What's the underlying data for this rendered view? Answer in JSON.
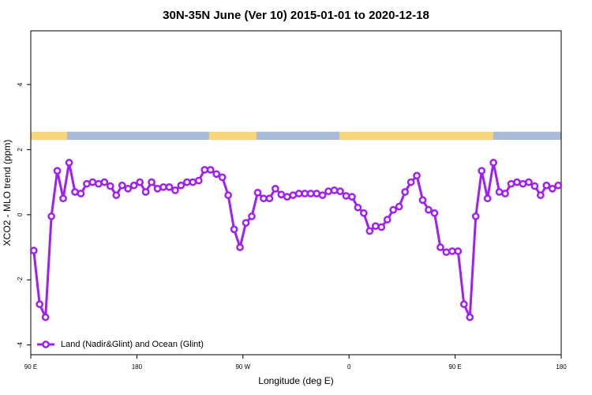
{
  "chart_data": {
    "type": "line",
    "title": "30N-35N June (Ver 10)   2015-01-01 to 2020-12-18",
    "x_label": "Longitude (deg E)",
    "y_label": "XCO2 - MLO trend (ppm)",
    "xlim": [
      90,
      540
    ],
    "ylim": [
      -4.3,
      5.65
    ],
    "xticks": [
      {
        "value": 90,
        "label": "90 E"
      },
      180,
      {
        "value": 270,
        "label": "90 W"
      },
      {
        "value": 360,
        "label": "0"
      },
      {
        "value": 450,
        "label": "90 E"
      },
      {
        "value": 540,
        "label": "180"
      }
    ],
    "yticks": [
      -4,
      -2,
      0,
      2,
      4
    ],
    "legend": "bottom-left",
    "band_ylim": [
      2.3,
      2.55
    ],
    "band": [
      {
        "start": 90,
        "end": 120.8,
        "color": "#f7d57a"
      },
      {
        "start": 120.8,
        "end": 241.3,
        "color": "#a8bbd9"
      },
      {
        "start": 241.3,
        "end": 281.5,
        "color": "#f7d57a"
      },
      {
        "start": 281.5,
        "end": 351.8,
        "color": "#a8bbd9"
      },
      {
        "start": 351.8,
        "end": 482.4,
        "color": "#f7d57a"
      },
      {
        "start": 482.4,
        "end": 540,
        "color": "#a8bbd9"
      }
    ],
    "x": [
      92.5,
      97.5,
      102.5,
      107.5,
      112.5,
      117.5,
      122.5,
      127.5,
      132.5,
      137.5,
      142.5,
      147.5,
      152.5,
      157.5,
      162.5,
      167.5,
      172.5,
      177.5,
      182.5,
      187.5,
      192.5,
      197.5,
      202.5,
      207.5,
      212.5,
      217.5,
      222.5,
      227.5,
      232.5,
      237.5,
      242.5,
      247.5,
      252.5,
      257.5,
      262.5,
      267.5,
      272.5,
      277.5,
      282.5,
      287.5,
      292.5,
      297.5,
      302.5,
      307.5,
      312.5,
      317.5,
      322.5,
      327.5,
      332.5,
      337.5,
      342.5,
      347.5,
      352.5,
      357.5,
      362.5,
      367.5,
      372.5,
      377.5,
      382.5,
      387.5,
      392.5,
      397.5,
      402.5,
      407.5,
      412.5,
      417.5,
      422.5,
      427.5,
      432.5,
      437.5,
      442.5,
      447.5,
      452.5,
      457.5,
      462.5,
      467.5,
      472.5,
      477.5,
      482.5,
      487.5,
      492.5,
      497.5,
      502.5,
      507.5,
      512.5,
      517.5,
      522.5,
      527.5,
      532.5,
      537.5
    ],
    "series": [
      {
        "name": "Land (Nadir&Glint) and Ocean (Glint)",
        "color": "#a020f0",
        "values": [
          -1.1,
          -2.75,
          -3.15,
          -0.05,
          1.35,
          0.5,
          1.6,
          0.7,
          0.65,
          0.95,
          1.0,
          0.95,
          1.0,
          0.88,
          0.6,
          0.9,
          0.8,
          0.9,
          1.0,
          0.7,
          1.0,
          0.8,
          0.85,
          0.85,
          0.75,
          0.9,
          1.0,
          1.0,
          1.05,
          1.38,
          1.38,
          1.25,
          1.15,
          0.6,
          -0.45,
          -1.0,
          -0.25,
          -0.05,
          0.68,
          0.5,
          0.5,
          0.8,
          0.62,
          0.55,
          0.6,
          0.65,
          0.65,
          0.65,
          0.65,
          0.6,
          0.72,
          0.75,
          0.72,
          0.58,
          0.55,
          0.22,
          0.05,
          -0.5,
          -0.35,
          -0.38,
          -0.15,
          0.15,
          0.25,
          0.7,
          1.0,
          1.2,
          0.45,
          0.15,
          0.05,
          -1.0,
          -1.15,
          -1.12,
          -1.12,
          -2.75,
          -3.15,
          -0.05,
          1.35,
          0.5,
          1.6,
          0.7,
          0.65,
          0.95,
          1.0,
          0.95,
          1.0,
          0.88,
          0.6,
          0.9,
          0.8,
          0.9
        ]
      }
    ]
  }
}
